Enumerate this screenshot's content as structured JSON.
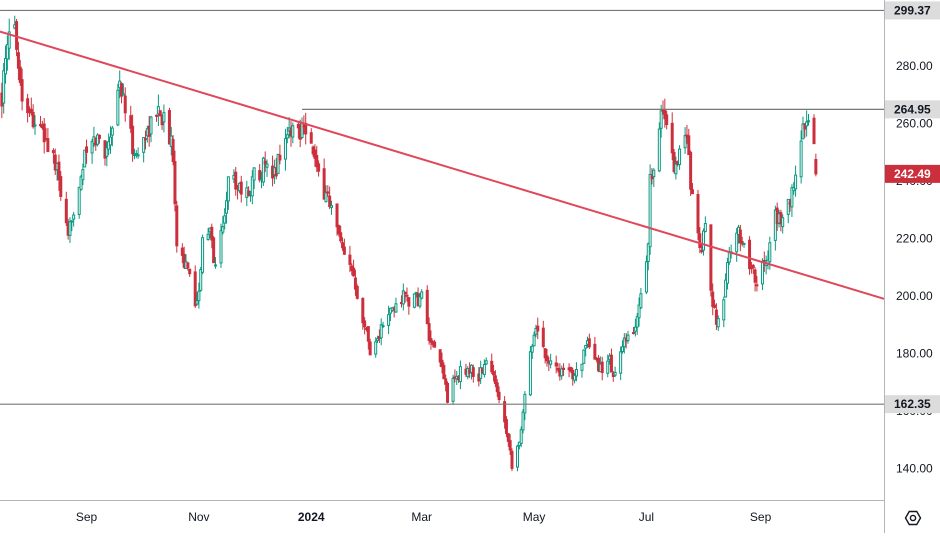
{
  "chart_data": {
    "type": "candlestick",
    "colors": {
      "up": "#089981",
      "down": "#cc2f3c",
      "up_fill": "#ffffff",
      "trendline": "#e0475a",
      "level_line": "#777777",
      "last_price_tag": "#cc2f3c",
      "axis_text": "#131722",
      "axis_line": "#b2b5be"
    },
    "ylim": [
      129,
      303
    ],
    "y_ticks": [
      140,
      160,
      180,
      200,
      220,
      240,
      260,
      280
    ],
    "x_range": [
      "2023-07-16",
      "2024-11-07"
    ],
    "x_ticks": [
      {
        "date": "2023-09-01",
        "label": "Sep",
        "bold": false
      },
      {
        "date": "2023-11-01",
        "label": "Nov",
        "bold": false
      },
      {
        "date": "2024-01-01",
        "label": "2024",
        "bold": true
      },
      {
        "date": "2024-03-01",
        "label": "Mar",
        "bold": false
      },
      {
        "date": "2024-05-01",
        "label": "May",
        "bold": false
      },
      {
        "date": "2024-07-01",
        "label": "Jul",
        "bold": false
      },
      {
        "date": "2024-09-01",
        "label": "Sep",
        "bold": false
      }
    ],
    "horizontal_levels": [
      {
        "value": 299.37,
        "label": "299.37",
        "start": "2023-07-16"
      },
      {
        "value": 264.95,
        "label": "264.95",
        "start": "2023-12-27"
      },
      {
        "value": 162.35,
        "label": "162.35",
        "start": "2023-07-16"
      }
    ],
    "trendline": {
      "start": [
        "2023-07-16",
        292.0
      ],
      "end": [
        "2024-11-07",
        199.0
      ]
    },
    "last_price": {
      "value": 242.49,
      "label": "242.49"
    },
    "anchors": [
      [
        "2023-07-17",
        270
      ],
      [
        "2023-07-19",
        280
      ],
      [
        "2023-07-20",
        285
      ],
      [
        "2023-07-21",
        290
      ],
      [
        "2023-07-24",
        295
      ],
      [
        "2023-07-25",
        290
      ],
      [
        "2023-07-26",
        280
      ],
      [
        "2023-07-28",
        270
      ],
      [
        "2023-08-03",
        262
      ],
      [
        "2023-08-09",
        255
      ],
      [
        "2023-08-14",
        248
      ],
      [
        "2023-08-17",
        240
      ],
      [
        "2023-08-22",
        218
      ],
      [
        "2023-08-24",
        228
      ],
      [
        "2023-08-28",
        240
      ],
      [
        "2023-09-01",
        250
      ],
      [
        "2023-09-07",
        255
      ],
      [
        "2023-09-11",
        250
      ],
      [
        "2023-09-15",
        260
      ],
      [
        "2023-09-19",
        275
      ],
      [
        "2023-09-21",
        268
      ],
      [
        "2023-09-25",
        255
      ],
      [
        "2023-09-28",
        248
      ],
      [
        "2023-10-02",
        255
      ],
      [
        "2023-10-06",
        260
      ],
      [
        "2023-10-11",
        265
      ],
      [
        "2023-10-16",
        255
      ],
      [
        "2023-10-18",
        250
      ],
      [
        "2023-10-20",
        220
      ],
      [
        "2023-10-25",
        210
      ],
      [
        "2023-10-31",
        197
      ],
      [
        "2023-11-03",
        218
      ],
      [
        "2023-11-07",
        222
      ],
      [
        "2023-11-10",
        210
      ],
      [
        "2023-11-14",
        225
      ],
      [
        "2023-11-17",
        240
      ],
      [
        "2023-11-21",
        240
      ],
      [
        "2023-11-27",
        235
      ],
      [
        "2023-12-01",
        242
      ],
      [
        "2023-12-06",
        245
      ],
      [
        "2023-12-11",
        240
      ],
      [
        "2023-12-15",
        250
      ],
      [
        "2023-12-20",
        258
      ],
      [
        "2023-12-26",
        258
      ],
      [
        "2023-12-28",
        262
      ],
      [
        "2024-01-02",
        250
      ],
      [
        "2024-01-05",
        240
      ],
      [
        "2024-01-10",
        235
      ],
      [
        "2024-01-16",
        220
      ],
      [
        "2024-01-19",
        212
      ],
      [
        "2024-01-24",
        208
      ],
      [
        "2024-01-30",
        190
      ],
      [
        "2024-02-02",
        182
      ],
      [
        "2024-02-06",
        185
      ],
      [
        "2024-02-09",
        190
      ],
      [
        "2024-02-14",
        195
      ],
      [
        "2024-02-20",
        200
      ],
      [
        "2024-02-26",
        198
      ],
      [
        "2024-03-01",
        200
      ],
      [
        "2024-03-06",
        182
      ],
      [
        "2024-03-12",
        175
      ],
      [
        "2024-03-15",
        165
      ],
      [
        "2024-03-20",
        172
      ],
      [
        "2024-03-26",
        175
      ],
      [
        "2024-04-01",
        172
      ],
      [
        "2024-04-05",
        177
      ],
      [
        "2024-04-10",
        170
      ],
      [
        "2024-04-15",
        158
      ],
      [
        "2024-04-19",
        142
      ],
      [
        "2024-04-24",
        152
      ],
      [
        "2024-04-26",
        165
      ],
      [
        "2024-04-29",
        182
      ],
      [
        "2024-05-02",
        190
      ],
      [
        "2024-05-07",
        180
      ],
      [
        "2024-05-13",
        175
      ],
      [
        "2024-05-20",
        172
      ],
      [
        "2024-05-24",
        175
      ],
      [
        "2024-05-30",
        182
      ],
      [
        "2024-06-05",
        175
      ],
      [
        "2024-06-11",
        177
      ],
      [
        "2024-06-14",
        172
      ],
      [
        "2024-06-18",
        182
      ],
      [
        "2024-06-24",
        187
      ],
      [
        "2024-06-28",
        200
      ],
      [
        "2024-07-02",
        218
      ],
      [
        "2024-07-03",
        240
      ],
      [
        "2024-07-09",
        262
      ],
      [
        "2024-07-11",
        264
      ],
      [
        "2024-07-16",
        245
      ],
      [
        "2024-07-19",
        250
      ],
      [
        "2024-07-23",
        255
      ],
      [
        "2024-07-25",
        240
      ],
      [
        "2024-07-31",
        215
      ],
      [
        "2024-08-02",
        225
      ],
      [
        "2024-08-05",
        200
      ],
      [
        "2024-08-08",
        190
      ],
      [
        "2024-08-12",
        200
      ],
      [
        "2024-08-16",
        218
      ],
      [
        "2024-08-20",
        222
      ],
      [
        "2024-08-26",
        212
      ],
      [
        "2024-08-30",
        206
      ],
      [
        "2024-09-04",
        212
      ],
      [
        "2024-09-09",
        228
      ],
      [
        "2024-09-13",
        225
      ],
      [
        "2024-09-18",
        235
      ],
      [
        "2024-09-23",
        255
      ],
      [
        "2024-09-26",
        262
      ],
      [
        "2024-09-30",
        250
      ],
      [
        "2024-10-01",
        242.49
      ]
    ]
  }
}
